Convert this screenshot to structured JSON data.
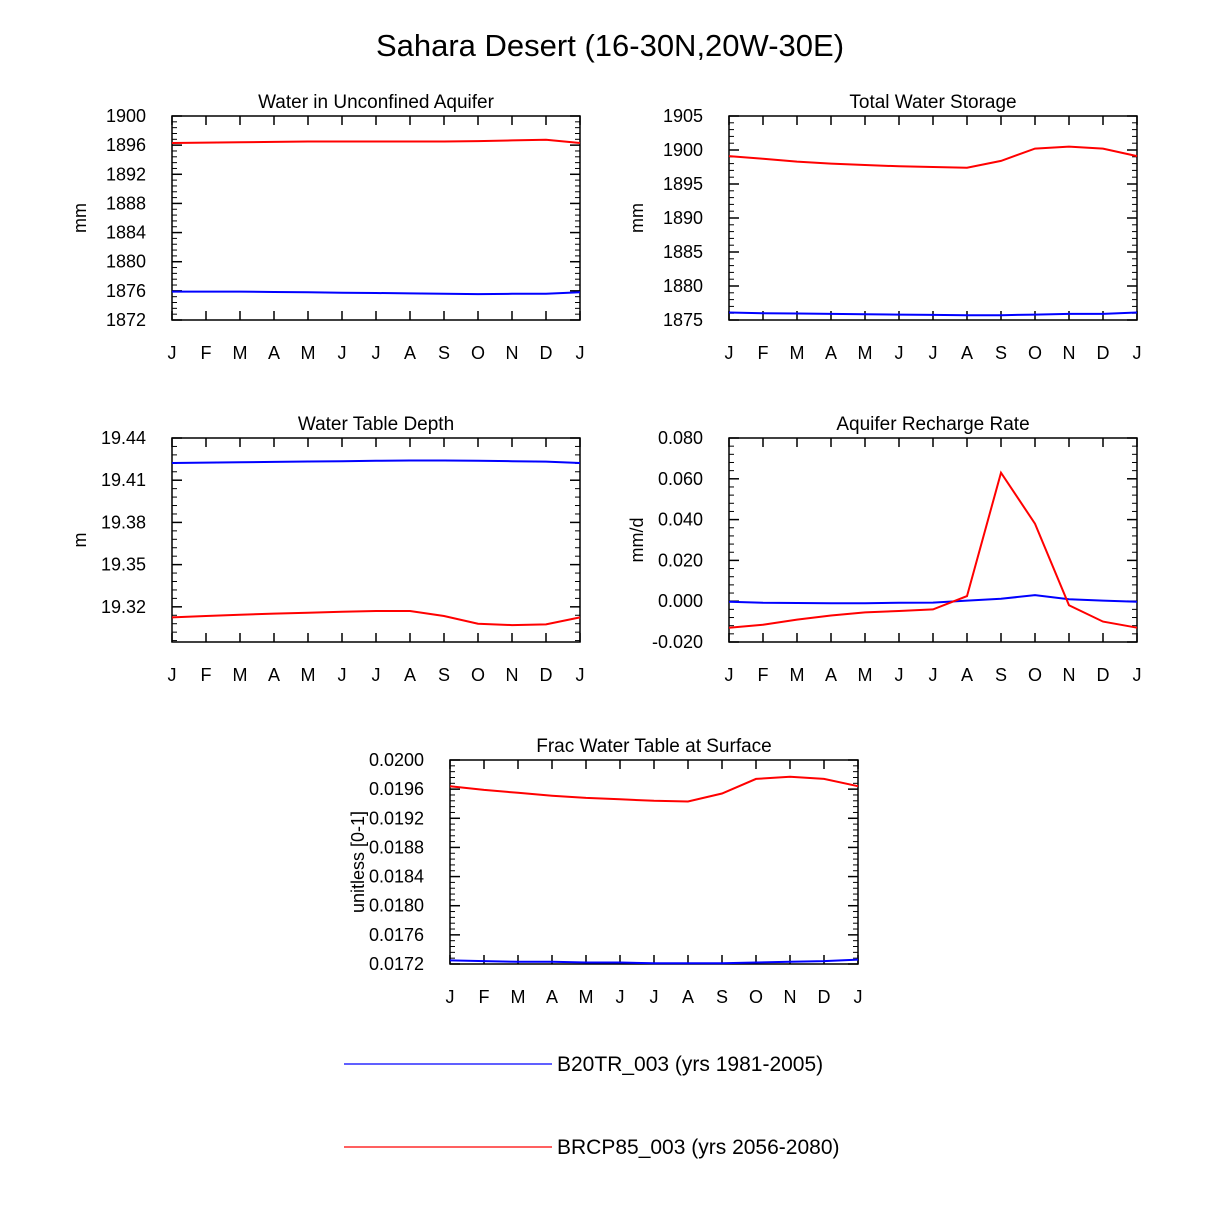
{
  "figure": {
    "title": "Sahara Desert (16-30N,20W-30E)"
  },
  "legend": [
    {
      "label": "B20TR_003 (yrs 1981-2005)",
      "color": "#0000ff"
    },
    {
      "label": "BRCP85_003 (yrs 2056-2080)",
      "color": "#ff0000"
    }
  ],
  "chart_data": [
    {
      "type": "line",
      "title": "Water in Unconfined Aquifer",
      "ylabel": "mm",
      "xlabel": "",
      "x": [
        "J",
        "F",
        "M",
        "A",
        "M",
        "J",
        "J",
        "A",
        "S",
        "O",
        "N",
        "D",
        "J"
      ],
      "ylim": [
        1872,
        1900
      ],
      "yticks": [
        "1900",
        "1896",
        "1892",
        "1888",
        "1884",
        "1880",
        "1876",
        "1872"
      ],
      "series": [
        {
          "name": "B20TR_003 (yrs 1981-2005)",
          "color": "#0000ff",
          "values": [
            1875.9,
            1875.9,
            1875.9,
            1875.85,
            1875.8,
            1875.75,
            1875.7,
            1875.65,
            1875.6,
            1875.55,
            1875.6,
            1875.6,
            1875.8
          ]
        },
        {
          "name": "BRCP85_003 (yrs 2056-2080)",
          "color": "#ff0000",
          "values": [
            1896.3,
            1896.35,
            1896.4,
            1896.45,
            1896.5,
            1896.5,
            1896.5,
            1896.5,
            1896.5,
            1896.55,
            1896.65,
            1896.75,
            1896.3
          ]
        }
      ]
    },
    {
      "type": "line",
      "title": "Total Water Storage",
      "ylabel": "mm",
      "xlabel": "",
      "x": [
        "J",
        "F",
        "M",
        "A",
        "M",
        "J",
        "J",
        "A",
        "S",
        "O",
        "N",
        "D",
        "J"
      ],
      "ylim": [
        1875,
        1905
      ],
      "yticks": [
        "1905",
        "1900",
        "1895",
        "1890",
        "1885",
        "1880",
        "1875"
      ],
      "series": [
        {
          "name": "B20TR_003 (yrs 1981-2005)",
          "color": "#0000ff",
          "values": [
            1876.1,
            1876.0,
            1875.95,
            1875.9,
            1875.85,
            1875.8,
            1875.75,
            1875.7,
            1875.7,
            1875.8,
            1875.9,
            1875.9,
            1876.1
          ]
        },
        {
          "name": "BRCP85_003 (yrs 2056-2080)",
          "color": "#ff0000",
          "values": [
            1899.1,
            1898.7,
            1898.3,
            1898.0,
            1897.8,
            1897.6,
            1897.5,
            1897.4,
            1898.4,
            1900.2,
            1900.5,
            1900.2,
            1899.1
          ]
        }
      ]
    },
    {
      "type": "line",
      "title": "Water Table Depth",
      "ylabel": "m",
      "xlabel": "",
      "x": [
        "J",
        "F",
        "M",
        "A",
        "M",
        "J",
        "J",
        "A",
        "S",
        "O",
        "N",
        "D",
        "J"
      ],
      "ylim": [
        19.295,
        19.44
      ],
      "yticks": [
        "19.44",
        "19.41",
        "19.38",
        "19.35",
        "19.32"
      ],
      "series": [
        {
          "name": "B20TR_003 (yrs 1981-2005)",
          "color": "#0000ff",
          "values": [
            19.4222,
            19.4225,
            19.4228,
            19.423,
            19.4233,
            19.4235,
            19.4238,
            19.424,
            19.424,
            19.4238,
            19.4235,
            19.4232,
            19.4222
          ]
        },
        {
          "name": "BRCP85_003 (yrs 2056-2080)",
          "color": "#ff0000",
          "values": [
            19.3125,
            19.3135,
            19.3143,
            19.3152,
            19.3158,
            19.3165,
            19.317,
            19.317,
            19.3135,
            19.308,
            19.307,
            19.3075,
            19.3125
          ]
        }
      ]
    },
    {
      "type": "line",
      "title": "Aquifer Recharge Rate",
      "ylabel": "mm/d",
      "xlabel": "",
      "x": [
        "J",
        "F",
        "M",
        "A",
        "M",
        "J",
        "J",
        "A",
        "S",
        "O",
        "N",
        "D",
        "J"
      ],
      "ylim": [
        -0.02,
        0.08
      ],
      "yticks": [
        "0.080",
        "0.060",
        "0.040",
        "0.020",
        "0.000",
        "-0.020"
      ],
      "series": [
        {
          "name": "B20TR_003 (yrs 1981-2005)",
          "color": "#0000ff",
          "values": [
            -0.0003,
            -0.0008,
            -0.0009,
            -0.001,
            -0.001,
            -0.0008,
            -0.0007,
            0.0003,
            0.0012,
            0.003,
            0.001,
            0.0003,
            -0.0003
          ]
        },
        {
          "name": "BRCP85_003 (yrs 2056-2080)",
          "color": "#ff0000",
          "values": [
            -0.013,
            -0.0115,
            -0.009,
            -0.007,
            -0.0055,
            -0.0048,
            -0.004,
            0.0025,
            0.063,
            0.038,
            -0.002,
            -0.01,
            -0.013
          ]
        }
      ]
    },
    {
      "type": "line",
      "title": "Frac Water Table at Surface",
      "ylabel": "unitless [0-1]",
      "xlabel": "",
      "x": [
        "J",
        "F",
        "M",
        "A",
        "M",
        "J",
        "J",
        "A",
        "S",
        "O",
        "N",
        "D",
        "J"
      ],
      "ylim": [
        0.0172,
        0.02
      ],
      "yticks": [
        "0.0200",
        "0.0196",
        "0.0192",
        "0.0188",
        "0.0184",
        "0.0180",
        "0.0176",
        "0.0172"
      ],
      "series": [
        {
          "name": "B20TR_003 (yrs 1981-2005)",
          "color": "#0000ff",
          "values": [
            0.01725,
            0.01724,
            0.01723,
            0.01723,
            0.01722,
            0.01722,
            0.01721,
            0.01721,
            0.01721,
            0.01722,
            0.01723,
            0.01724,
            0.01726
          ]
        },
        {
          "name": "BRCP85_003 (yrs 2056-2080)",
          "color": "#ff0000",
          "values": [
            0.01964,
            0.01959,
            0.01955,
            0.01951,
            0.01948,
            0.01946,
            0.01944,
            0.01943,
            0.01954,
            0.01974,
            0.01977,
            0.01974,
            0.01964
          ]
        }
      ]
    }
  ]
}
